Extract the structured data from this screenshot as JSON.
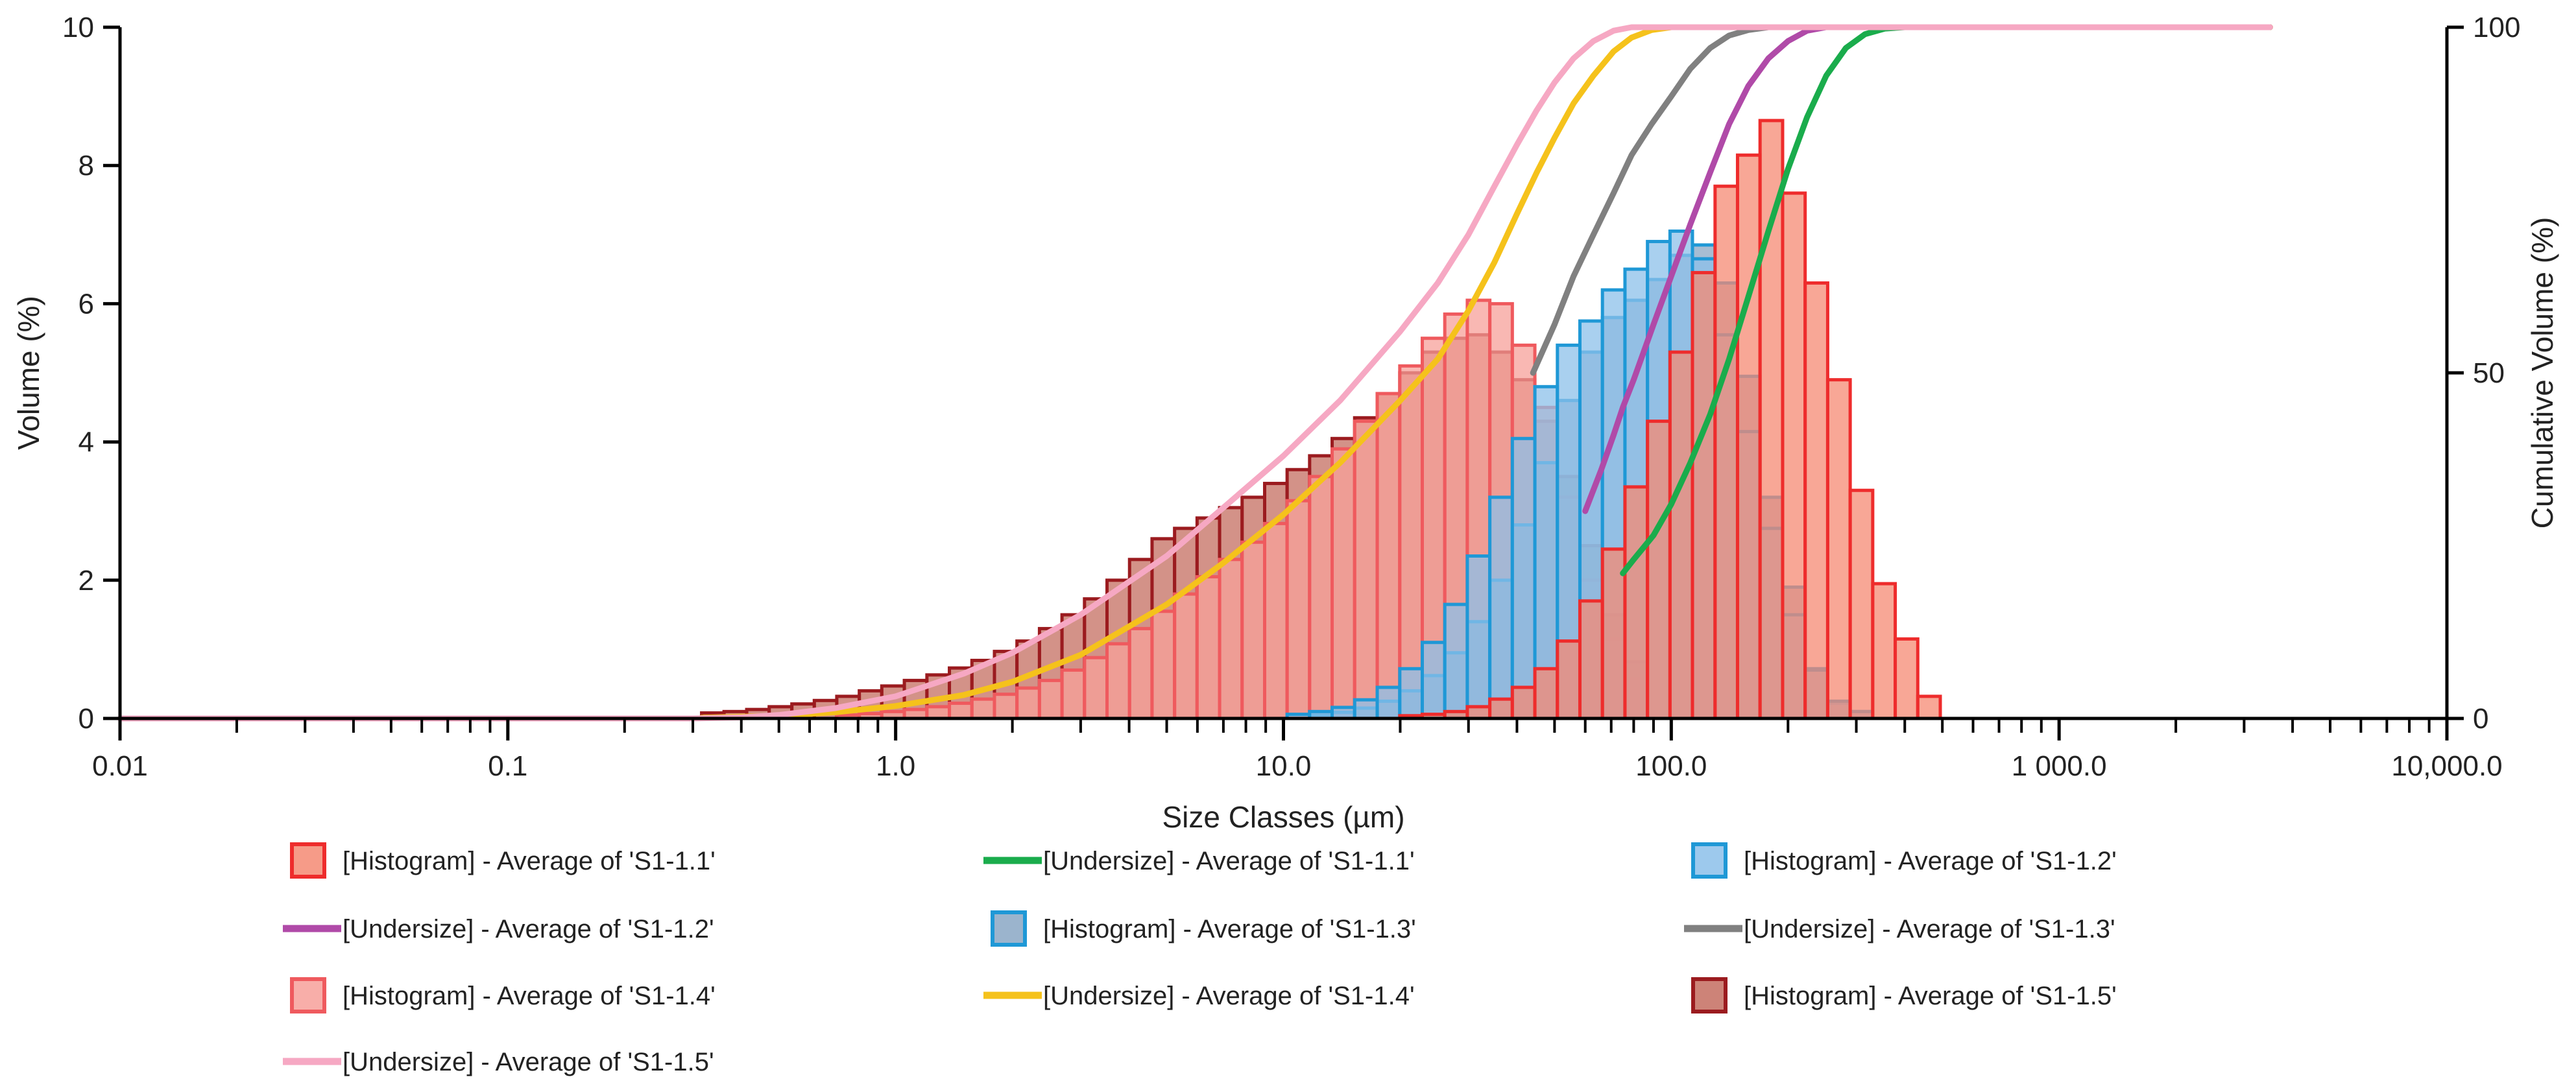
{
  "chart_data": {
    "type": "bar",
    "x_scale": "log",
    "xlabel": "Size Classes (µm)",
    "ylabel": "Volume (%)",
    "y2label": "Cumulative Volume (%)",
    "xlim": [
      0.01,
      10000
    ],
    "ylim": [
      0,
      10
    ],
    "y2lim": [
      0,
      100
    ],
    "x_tick_labels": [
      {
        "value": 0.01,
        "label": "0.01"
      },
      {
        "value": 0.1,
        "label": "0.1"
      },
      {
        "value": 1,
        "label": "1.0"
      },
      {
        "value": 10,
        "label": "10.0"
      },
      {
        "value": 100,
        "label": "100.0"
      },
      {
        "value": 1000,
        "label": "1 000.0"
      },
      {
        "value": 10000,
        "label": "10,000.0"
      }
    ],
    "y_ticks": [
      0,
      2,
      4,
      6,
      8,
      10
    ],
    "y2_ticks": [
      0,
      50,
      100
    ],
    "grid": false,
    "legend_position": "bottom",
    "legend": [
      {
        "label": "[Histogram] - Average of 'S1-1.1'",
        "kind": "histogram",
        "series": "h11"
      },
      {
        "label": "[Undersize] - Average of 'S1-1.1'",
        "kind": "line",
        "series": "u11"
      },
      {
        "label": "[Histogram] - Average of 'S1-1.2'",
        "kind": "histogram",
        "series": "h12"
      },
      {
        "label": "[Undersize] - Average of 'S1-1.2'",
        "kind": "line",
        "series": "u12"
      },
      {
        "label": "[Histogram] - Average of 'S1-1.3'",
        "kind": "histogram",
        "series": "h13"
      },
      {
        "label": "[Undersize] - Average of 'S1-1.3'",
        "kind": "line",
        "series": "u13"
      },
      {
        "label": "[Histogram] - Average of 'S1-1.4'",
        "kind": "histogram",
        "series": "h14"
      },
      {
        "label": "[Undersize] - Average of 'S1-1.4'",
        "kind": "line",
        "series": "u14"
      },
      {
        "label": "[Histogram] - Average of 'S1-1.5'",
        "kind": "histogram",
        "series": "h15"
      },
      {
        "label": "[Undersize] - Average of 'S1-1.5'",
        "kind": "line",
        "series": "u15"
      }
    ],
    "bin_edges": [
      0.316,
      0.361,
      0.413,
      0.472,
      0.54,
      0.617,
      0.705,
      0.806,
      0.921,
      1.053,
      1.204,
      1.376,
      1.573,
      1.798,
      2.055,
      2.349,
      2.685,
      3.069,
      3.508,
      4.01,
      4.583,
      5.239,
      5.988,
      6.844,
      7.823,
      8.943,
      10.22,
      11.68,
      13.35,
      15.26,
      17.45,
      19.95,
      22.8,
      26.06,
      29.79,
      34.05,
      38.92,
      44.49,
      50.86,
      58.13,
      66.45,
      75.96,
      86.83,
      99.25,
      113.4,
      129.7,
      148.2,
      169.4,
      193.7,
      221.4,
      253.1,
      289.3,
      330.7,
      378,
      432.1,
      493.9
    ],
    "histograms": [
      {
        "key": "h15",
        "name": "Average of 'S1-1.5'",
        "values": [
          0.08,
          0.1,
          0.13,
          0.17,
          0.21,
          0.26,
          0.32,
          0.4,
          0.47,
          0.55,
          0.63,
          0.73,
          0.84,
          0.97,
          1.12,
          1.3,
          1.5,
          1.73,
          2.0,
          2.3,
          2.6,
          2.75,
          2.9,
          3.05,
          3.2,
          3.4,
          3.6,
          3.8,
          4.05,
          4.35,
          4.7,
          5.0,
          5.3,
          5.5,
          5.55,
          5.3,
          4.9,
          4.3,
          3.5,
          2.5,
          1.5,
          0.82,
          0,
          0,
          0,
          0,
          0,
          0,
          0,
          0,
          0,
          0,
          0,
          0,
          0
        ]
      },
      {
        "key": "h14",
        "name": "Average of 'S1-1.4'",
        "values": [
          0,
          0,
          0,
          0,
          0,
          0,
          0.05,
          0.07,
          0.1,
          0.13,
          0.17,
          0.22,
          0.28,
          0.35,
          0.44,
          0.55,
          0.7,
          0.88,
          1.08,
          1.3,
          1.55,
          1.8,
          2.05,
          2.3,
          2.55,
          2.82,
          3.15,
          3.5,
          3.9,
          4.3,
          4.7,
          5.1,
          5.5,
          5.85,
          6.05,
          6.0,
          5.4,
          4.5,
          3.2,
          2.0,
          1.15,
          0.58,
          0,
          0,
          0,
          0,
          0,
          0,
          0,
          0,
          0,
          0,
          0,
          0,
          0
        ]
      },
      {
        "key": "h13",
        "name": "Average of 'S1-1.3'",
        "values": [
          0,
          0,
          0,
          0,
          0,
          0,
          0,
          0,
          0,
          0,
          0,
          0,
          0,
          0,
          0,
          0,
          0,
          0,
          0,
          0,
          0,
          0,
          0,
          0,
          0,
          0,
          0,
          0.05,
          0.09,
          0.15,
          0.25,
          0.4,
          0.62,
          0.95,
          1.4,
          2.0,
          2.8,
          3.7,
          4.6,
          5.3,
          5.8,
          6.05,
          6.35,
          6.7,
          6.85,
          6.3,
          4.95,
          3.2,
          1.9,
          0.72,
          0.22,
          0.1,
          0,
          0,
          0
        ]
      },
      {
        "key": "h12",
        "name": "Average of 'S1-1.2'",
        "values": [
          0,
          0,
          0,
          0,
          0,
          0,
          0,
          0,
          0,
          0,
          0,
          0,
          0,
          0,
          0,
          0,
          0,
          0,
          0,
          0,
          0,
          0,
          0,
          0,
          0,
          0,
          0.06,
          0.1,
          0.16,
          0.27,
          0.45,
          0.72,
          1.1,
          1.65,
          2.35,
          3.2,
          4.05,
          4.8,
          5.4,
          5.75,
          6.2,
          6.5,
          6.9,
          7.05,
          6.65,
          5.55,
          4.15,
          2.75,
          1.5,
          0.7,
          0.25,
          0.1,
          0,
          0,
          0
        ]
      },
      {
        "key": "h11",
        "name": "Average of 'S1-1.1'",
        "values": [
          0,
          0,
          0,
          0,
          0,
          0,
          0,
          0,
          0,
          0,
          0,
          0,
          0,
          0,
          0,
          0,
          0,
          0,
          0,
          0,
          0,
          0,
          0,
          0,
          0,
          0,
          0,
          0,
          0,
          0,
          0,
          0.04,
          0.06,
          0.1,
          0.17,
          0.28,
          0.45,
          0.72,
          1.12,
          1.7,
          2.45,
          3.35,
          4.3,
          5.3,
          6.45,
          7.7,
          8.15,
          8.65,
          7.6,
          6.3,
          4.9,
          3.3,
          1.95,
          1.15,
          0.32
        ]
      }
    ],
    "undersize_curves": [
      {
        "key": "u11",
        "name": "Average of 'S1-1.1'",
        "points": [
          [
            75,
            21
          ],
          [
            80,
            23
          ],
          [
            90,
            26.5
          ],
          [
            100,
            31
          ],
          [
            112,
            37
          ],
          [
            126,
            44
          ],
          [
            141,
            52
          ],
          [
            158,
            61
          ],
          [
            178,
            70.5
          ],
          [
            200,
            79.5
          ],
          [
            224,
            87
          ],
          [
            251,
            93
          ],
          [
            282,
            97
          ],
          [
            316,
            99
          ],
          [
            355,
            99.8
          ],
          [
            400,
            100
          ],
          [
            3500,
            100
          ]
        ]
      },
      {
        "key": "u12",
        "name": "Average of 'S1-1.2'",
        "points": [
          [
            60,
            30
          ],
          [
            66,
            36
          ],
          [
            71,
            41
          ],
          [
            75,
            45
          ],
          [
            80,
            49
          ],
          [
            90,
            57
          ],
          [
            100,
            64
          ],
          [
            112,
            71.5
          ],
          [
            126,
            79
          ],
          [
            141,
            86
          ],
          [
            158,
            91.5
          ],
          [
            178,
            95.5
          ],
          [
            200,
            98
          ],
          [
            224,
            99.5
          ],
          [
            251,
            100
          ],
          [
            3500,
            100
          ]
        ]
      },
      {
        "key": "u13",
        "name": "Average of 'S1-1.3'",
        "points": [
          [
            44,
            50
          ],
          [
            50,
            57
          ],
          [
            56,
            64
          ],
          [
            63,
            70
          ],
          [
            71,
            76
          ],
          [
            79,
            81.5
          ],
          [
            89,
            86
          ],
          [
            100,
            90
          ],
          [
            112,
            94
          ],
          [
            126,
            97
          ],
          [
            141,
            98.8
          ],
          [
            158,
            99.6
          ],
          [
            178,
            100
          ],
          [
            3500,
            100
          ]
        ]
      },
      {
        "key": "u14",
        "name": "Average of 'S1-1.4'",
        "points": [
          [
            0.316,
            0.1
          ],
          [
            0.5,
            0.4
          ],
          [
            0.7,
            0.9
          ],
          [
            1,
            1.8
          ],
          [
            1.5,
            3.4
          ],
          [
            2,
            5.3
          ],
          [
            3,
            9.2
          ],
          [
            5,
            16.5
          ],
          [
            7,
            22.5
          ],
          [
            10,
            29.5
          ],
          [
            14,
            37
          ],
          [
            20,
            46
          ],
          [
            25,
            52
          ],
          [
            30,
            59
          ],
          [
            35,
            66
          ],
          [
            40,
            73
          ],
          [
            45,
            79
          ],
          [
            50,
            84
          ],
          [
            56,
            89
          ],
          [
            63,
            93
          ],
          [
            71,
            96.5
          ],
          [
            79,
            98.5
          ],
          [
            89,
            99.6
          ],
          [
            100,
            100
          ],
          [
            3500,
            100
          ]
        ]
      },
      {
        "key": "u15",
        "name": "Average of 'S1-1.5'",
        "points": [
          [
            0.01,
            0
          ],
          [
            0.3,
            0
          ],
          [
            0.4,
            0.15
          ],
          [
            0.5,
            0.5
          ],
          [
            0.7,
            1.5
          ],
          [
            1,
            3.2
          ],
          [
            1.5,
            6.5
          ],
          [
            2,
            9.5
          ],
          [
            3,
            15
          ],
          [
            5,
            23.5
          ],
          [
            7,
            30.5
          ],
          [
            10,
            38
          ],
          [
            14,
            46
          ],
          [
            20,
            56
          ],
          [
            25,
            63
          ],
          [
            30,
            70
          ],
          [
            35,
            77
          ],
          [
            40,
            83
          ],
          [
            45,
            88
          ],
          [
            50,
            92
          ],
          [
            56,
            95.5
          ],
          [
            63,
            98
          ],
          [
            71,
            99.5
          ],
          [
            79,
            100
          ],
          [
            3500,
            100
          ]
        ]
      }
    ]
  },
  "colors": {
    "h11_fill": "#f58a73",
    "h11_stroke": "#ee2c2c",
    "h12_fill": "#8cc0ea",
    "h12_stroke": "#1f98d6",
    "h13_fill": "#8aa7c4",
    "h13_stroke": "#1f98d6",
    "h14_fill": "#f7a09a",
    "h14_stroke": "#ef5a5e",
    "h15_fill": "#c46d60",
    "h15_stroke": "#9b1b1f",
    "u11": "#1aac4c",
    "u12": "#b04aa8",
    "u13": "#808080",
    "u14": "#f5c21b",
    "u15": "#f6a8c3",
    "axis": "#000000",
    "text": "#222222"
  }
}
